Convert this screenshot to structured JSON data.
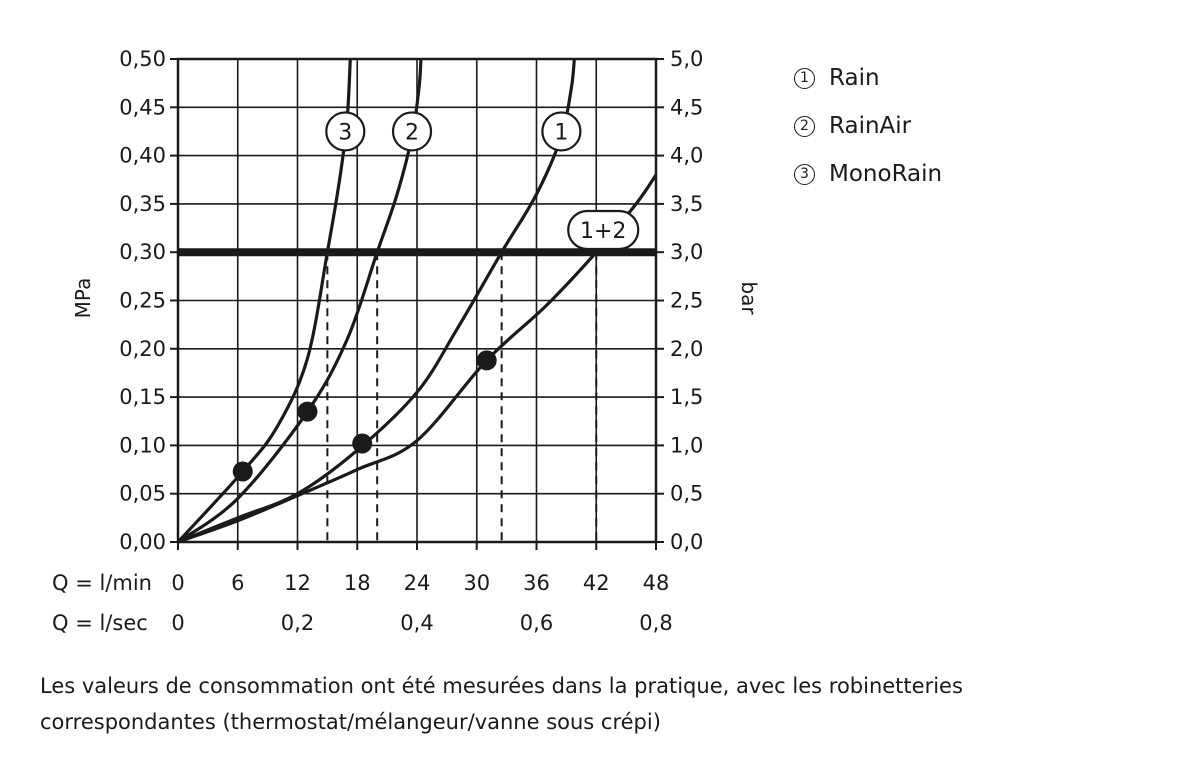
{
  "chart_data": {
    "type": "line",
    "x_axis": {
      "range": [
        0,
        48
      ],
      "ticks_lmin": [
        "0",
        "6",
        "12",
        "18",
        "24",
        "30",
        "36",
        "42",
        "48"
      ],
      "label_lmin": "Q = l/min",
      "ticks_lsec": [
        "0",
        "0,2",
        "0,4",
        "0,6",
        "0,8"
      ],
      "label_lsec": "Q = l/sec"
    },
    "y_left": {
      "label": "MPa",
      "range": [
        0,
        0.5
      ],
      "ticks": [
        "0,00",
        "0,05",
        "0,10",
        "0,15",
        "0,20",
        "0,25",
        "0,30",
        "0,35",
        "0,40",
        "0,45",
        "0,50"
      ]
    },
    "y_right": {
      "label": "bar",
      "range": [
        0,
        5
      ],
      "ticks": [
        "0,0",
        "0,5",
        "1,0",
        "1,5",
        "2,0",
        "2,5",
        "3,0",
        "3,5",
        "4,0",
        "4,5",
        "5,0"
      ]
    },
    "grid": true,
    "reference_line": {
      "y": 0.3
    },
    "series": [
      {
        "tag": "1",
        "name": "Rain",
        "points": [
          [
            0,
            0
          ],
          [
            6,
            0.025
          ],
          [
            12,
            0.05
          ],
          [
            18,
            0.095
          ],
          [
            24,
            0.155
          ],
          [
            28,
            0.22
          ],
          [
            32.5,
            0.3
          ],
          [
            36,
            0.36
          ],
          [
            38.5,
            0.42
          ],
          [
            39.5,
            0.47
          ],
          [
            39.8,
            0.5
          ]
        ],
        "marker": [
          18.5,
          0.102
        ],
        "flow_at_ref": 32.5,
        "label_at": [
          38.5,
          0.425
        ]
      },
      {
        "tag": "2",
        "name": "RainAir",
        "points": [
          [
            0,
            0
          ],
          [
            6,
            0.045
          ],
          [
            13,
            0.135
          ],
          [
            17,
            0.21
          ],
          [
            20,
            0.3
          ],
          [
            22,
            0.36
          ],
          [
            23.5,
            0.42
          ],
          [
            24.2,
            0.47
          ],
          [
            24.4,
            0.5
          ]
        ],
        "marker": [
          13,
          0.135
        ],
        "flow_at_ref": 20,
        "label_at": [
          23.5,
          0.425
        ]
      },
      {
        "tag": "3",
        "name": "MonoRain",
        "points": [
          [
            0,
            0
          ],
          [
            6.5,
            0.073
          ],
          [
            10,
            0.12
          ],
          [
            13,
            0.19
          ],
          [
            15,
            0.3
          ],
          [
            16.3,
            0.38
          ],
          [
            17,
            0.44
          ],
          [
            17.3,
            0.5
          ]
        ],
        "marker": [
          6.5,
          0.073
        ],
        "flow_at_ref": 15,
        "label_at": [
          16.8,
          0.425
        ]
      },
      {
        "tag": "1+2",
        "name": "",
        "points": [
          [
            0,
            0
          ],
          [
            6,
            0.022
          ],
          [
            12,
            0.048
          ],
          [
            18,
            0.075
          ],
          [
            24,
            0.105
          ],
          [
            31,
            0.188
          ],
          [
            37,
            0.245
          ],
          [
            42,
            0.3
          ],
          [
            46,
            0.35
          ],
          [
            48,
            0.38
          ]
        ],
        "marker": [
          31,
          0.188
        ],
        "flow_at_ref": 42,
        "label_at": [
          42.7,
          0.323
        ]
      }
    ]
  },
  "legend": [
    {
      "num": "1",
      "label": "Rain"
    },
    {
      "num": "2",
      "label": "RainAir"
    },
    {
      "num": "3",
      "label": "MonoRain"
    }
  ],
  "caption": {
    "line1": "Les valeurs de consommation ont été mesurées dans la pratique, avec les robinetteries",
    "line2": "correspondantes (thermostat/mélangeur/vanne sous crépi)"
  }
}
